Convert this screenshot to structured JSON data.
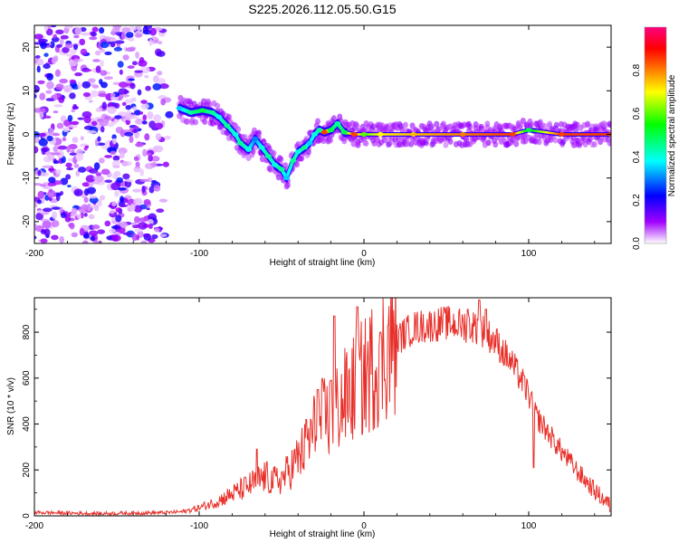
{
  "figure": {
    "title": "S225.2026.112.05.50.G15"
  },
  "chart_data": [
    {
      "type": "heatmap",
      "name": "spectrogram",
      "xlabel": "Height of straight line (km)",
      "ylabel": "Frequency (Hz)",
      "xlim": [
        -200,
        150
      ],
      "ylim": [
        -25,
        25
      ],
      "xticks": [
        -200,
        -100,
        0,
        100
      ],
      "xtick_labels": [
        "-200",
        "-100",
        "0",
        "100"
      ],
      "yticks": [
        -20,
        -10,
        0,
        10,
        20
      ],
      "ytick_labels": [
        "-20",
        "-10",
        "0",
        "10",
        "20"
      ],
      "colorbar": {
        "label": "Normalized spectral amplitude",
        "range": [
          0,
          1
        ],
        "ticks": [
          0.0,
          0.2,
          0.4,
          0.6,
          0.8
        ],
        "tick_labels": [
          "0.0",
          "0.2",
          "0.4",
          "0.6",
          "0.8"
        ],
        "colormap_stops": [
          "#ffffff",
          "#a000ff",
          "#0000ff",
          "#00ffff",
          "#00ff00",
          "#ffff00",
          "#ff8000",
          "#ff0000",
          "#ff0080"
        ]
      },
      "noise_region": {
        "x_range": [
          -200,
          -115
        ],
        "amplitude_range": [
          0.02,
          0.25
        ]
      },
      "ridge_points": [
        {
          "x": -112,
          "y": 6,
          "a": 0.35
        },
        {
          "x": -105,
          "y": 5,
          "a": 0.45
        },
        {
          "x": -98,
          "y": 5.5,
          "a": 0.5
        },
        {
          "x": -92,
          "y": 5,
          "a": 0.45
        },
        {
          "x": -88,
          "y": 4,
          "a": 0.4
        },
        {
          "x": -83,
          "y": 2,
          "a": 0.45
        },
        {
          "x": -78,
          "y": 0,
          "a": 0.4
        },
        {
          "x": -75,
          "y": -2,
          "a": 0.45
        },
        {
          "x": -70,
          "y": -3.5,
          "a": 0.4
        },
        {
          "x": -66,
          "y": -1,
          "a": 0.3
        },
        {
          "x": -62,
          "y": -3,
          "a": 0.4
        },
        {
          "x": -58,
          "y": -5,
          "a": 0.45
        },
        {
          "x": -54,
          "y": -7,
          "a": 0.4
        },
        {
          "x": -50,
          "y": -8,
          "a": 0.45
        },
        {
          "x": -47,
          "y": -10,
          "a": 0.35
        },
        {
          "x": -43,
          "y": -6,
          "a": 0.45
        },
        {
          "x": -40,
          "y": -4,
          "a": 0.4
        },
        {
          "x": -36,
          "y": -3,
          "a": 0.45
        },
        {
          "x": -33,
          "y": -2,
          "a": 0.35
        },
        {
          "x": -30,
          "y": 0,
          "a": 0.4
        },
        {
          "x": -27,
          "y": 1,
          "a": 0.45
        },
        {
          "x": -24,
          "y": 0.5,
          "a": 0.85
        },
        {
          "x": -20,
          "y": 1,
          "a": 0.5
        },
        {
          "x": -16,
          "y": 2.5,
          "a": 0.45
        },
        {
          "x": -12,
          "y": 0.5,
          "a": 0.5
        },
        {
          "x": -6,
          "y": 0,
          "a": 0.85
        },
        {
          "x": 0,
          "y": 0,
          "a": 0.6
        },
        {
          "x": 10,
          "y": 0,
          "a": 0.7
        },
        {
          "x": 30,
          "y": 0,
          "a": 0.75
        },
        {
          "x": 60,
          "y": 0,
          "a": 0.8
        },
        {
          "x": 90,
          "y": 0,
          "a": 0.85
        },
        {
          "x": 100,
          "y": 1,
          "a": 0.5
        },
        {
          "x": 120,
          "y": 0,
          "a": 0.85
        },
        {
          "x": 150,
          "y": 0,
          "a": 0.85
        }
      ]
    },
    {
      "type": "line",
      "name": "snr",
      "xlabel": "Height of straight line (km)",
      "ylabel": "SNR (10 * v/v)",
      "xlim": [
        -200,
        150
      ],
      "ylim": [
        0,
        950
      ],
      "xticks": [
        -200,
        -100,
        0,
        100
      ],
      "xtick_labels": [
        "-200",
        "-100",
        "0",
        "100"
      ],
      "yticks": [
        0,
        200,
        400,
        600,
        800
      ],
      "ytick_labels": [
        "0",
        "200",
        "400",
        "600",
        "800"
      ],
      "color": "#e8302a",
      "series": [
        {
          "name": "SNR",
          "x": [
            -200,
            -180,
            -160,
            -140,
            -120,
            -110,
            -100,
            -90,
            -80,
            -70,
            -60,
            -55,
            -50,
            -45,
            -40,
            -35,
            -30,
            -25,
            -20,
            -15,
            -10,
            -5,
            0,
            5,
            10,
            15,
            20,
            30,
            40,
            50,
            60,
            70,
            80,
            90,
            95,
            100,
            103,
            105,
            110,
            120,
            130,
            140,
            150
          ],
          "y": [
            15,
            12,
            10,
            12,
            14,
            18,
            35,
            60,
            95,
            130,
            170,
            150,
            160,
            200,
            250,
            300,
            380,
            420,
            430,
            480,
            520,
            560,
            600,
            650,
            700,
            740,
            770,
            820,
            830,
            840,
            830,
            820,
            760,
            660,
            600,
            530,
            460,
            430,
            380,
            280,
            190,
            110,
            40
          ]
        }
      ],
      "spikes": [
        {
          "x": -65,
          "y": 290
        },
        {
          "x": -35,
          "y": 420
        },
        {
          "x": -28,
          "y": 550
        },
        {
          "x": -20,
          "y": 590
        },
        {
          "x": -18,
          "y": 870
        },
        {
          "x": -4,
          "y": 910
        },
        {
          "x": 10,
          "y": 800
        },
        {
          "x": 63,
          "y": 900
        },
        {
          "x": 70,
          "y": 940
        },
        {
          "x": 74,
          "y": 900
        },
        {
          "x": 103,
          "y": 210
        }
      ]
    }
  ]
}
